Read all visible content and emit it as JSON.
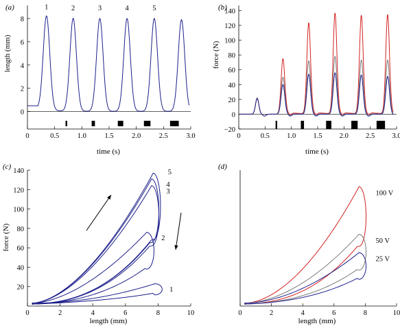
{
  "chart_data": [
    {
      "panel": "(a)",
      "type": "line",
      "xlabel": "time (s)",
      "ylabel": "length (mm)",
      "xlim": [
        0,
        3.0
      ],
      "ylim": [
        -1.5,
        9.0
      ],
      "xticks": [
        "0",
        "0.5",
        "1.0",
        "1.5",
        "2.0",
        "2.5",
        "3.0"
      ],
      "yticks": [
        "0",
        "2",
        "4",
        "6",
        "8"
      ],
      "baseline": 0.5,
      "peaks": [
        {
          "label": "1",
          "t": 0.35,
          "value": 8.1
        },
        {
          "label": "2",
          "t": 0.84,
          "value": 8.0
        },
        {
          "label": "3",
          "t": 1.33,
          "value": 8.0
        },
        {
          "label": "4",
          "t": 1.83,
          "value": 8.0
        },
        {
          "label": "5",
          "t": 2.33,
          "value": 8.0
        },
        {
          "label": "",
          "t": 2.83,
          "value": 7.9
        }
      ],
      "stimulus_bars": [
        [
          0.7,
          0.73
        ],
        [
          1.18,
          1.24
        ],
        [
          1.66,
          1.76
        ],
        [
          2.14,
          2.26
        ],
        [
          2.62,
          2.78
        ]
      ],
      "line_color": "#1c1f8a"
    },
    {
      "panel": "(b)",
      "type": "line",
      "xlabel": "time (s)",
      "ylabel": "force (N)",
      "xlim": [
        0,
        3.0
      ],
      "ylim": [
        -20,
        145
      ],
      "xticks": [
        "0",
        "0.5",
        "1.0",
        "1.5",
        "2.0",
        "2.5",
        "3.0"
      ],
      "yticks": [
        "−20",
        "0",
        "20",
        "40",
        "60",
        "80",
        "100",
        "120",
        "140"
      ],
      "peak_times": [
        0.35,
        0.84,
        1.33,
        1.83,
        2.33,
        2.83
      ],
      "series": [
        {
          "name": "",
          "color": "#d42020",
          "peaks": [
            22,
            75,
            123,
            136,
            133,
            134
          ],
          "baseline": 3
        },
        {
          "name": "",
          "color": "#7a7a7a",
          "peaks": [
            22,
            50,
            72,
            78,
            73,
            73
          ],
          "baseline": 1
        },
        {
          "name": "",
          "color": "#1c1f8a",
          "peaks": [
            21,
            40,
            54,
            56,
            53,
            51
          ],
          "baseline": 0
        }
      ],
      "stimulus_bars": [
        [
          0.7,
          0.73
        ],
        [
          1.18,
          1.24
        ],
        [
          1.66,
          1.76
        ],
        [
          2.14,
          2.26
        ],
        [
          2.62,
          2.78
        ]
      ]
    },
    {
      "panel": "(c)",
      "type": "line",
      "xlabel": "length (mm)",
      "ylabel": "force (N)",
      "xlim": [
        0,
        10
      ],
      "ylim": [
        0,
        140
      ],
      "xticks": [
        "0",
        "2",
        "4",
        "6",
        "8",
        "10"
      ],
      "yticks": [
        "20",
        "40",
        "60",
        "80",
        "100",
        "120",
        "140"
      ],
      "loops": [
        {
          "label": "1",
          "peak_x": 7.8,
          "peak_y": 23
        },
        {
          "label": "2",
          "peak_x": 7.3,
          "peak_y": 76
        },
        {
          "label": "3",
          "peak_x": 7.6,
          "peak_y": 124
        },
        {
          "label": "4",
          "peak_x": 7.6,
          "peak_y": 131
        },
        {
          "label": "5",
          "peak_x": 7.7,
          "peak_y": 137
        }
      ],
      "line_color": "#1c1f8a"
    },
    {
      "panel": "(d)",
      "type": "line",
      "xlabel": "length (mm)",
      "ylabel": "",
      "xlim": [
        0,
        10
      ],
      "ylim": [
        0,
        140
      ],
      "xticks": [
        "0",
        "2",
        "4",
        "6",
        "8",
        "10"
      ],
      "yticks": [],
      "loops": [
        {
          "label": "100 V",
          "color": "#d42020",
          "peak_x": 7.6,
          "peak_y": 123
        },
        {
          "label": "50 V",
          "color": "#7a7a7a",
          "peak_x": 7.6,
          "peak_y": 74
        },
        {
          "label": "25 V",
          "color": "#1c1f8a",
          "peak_x": 7.6,
          "peak_y": 55
        }
      ]
    }
  ]
}
